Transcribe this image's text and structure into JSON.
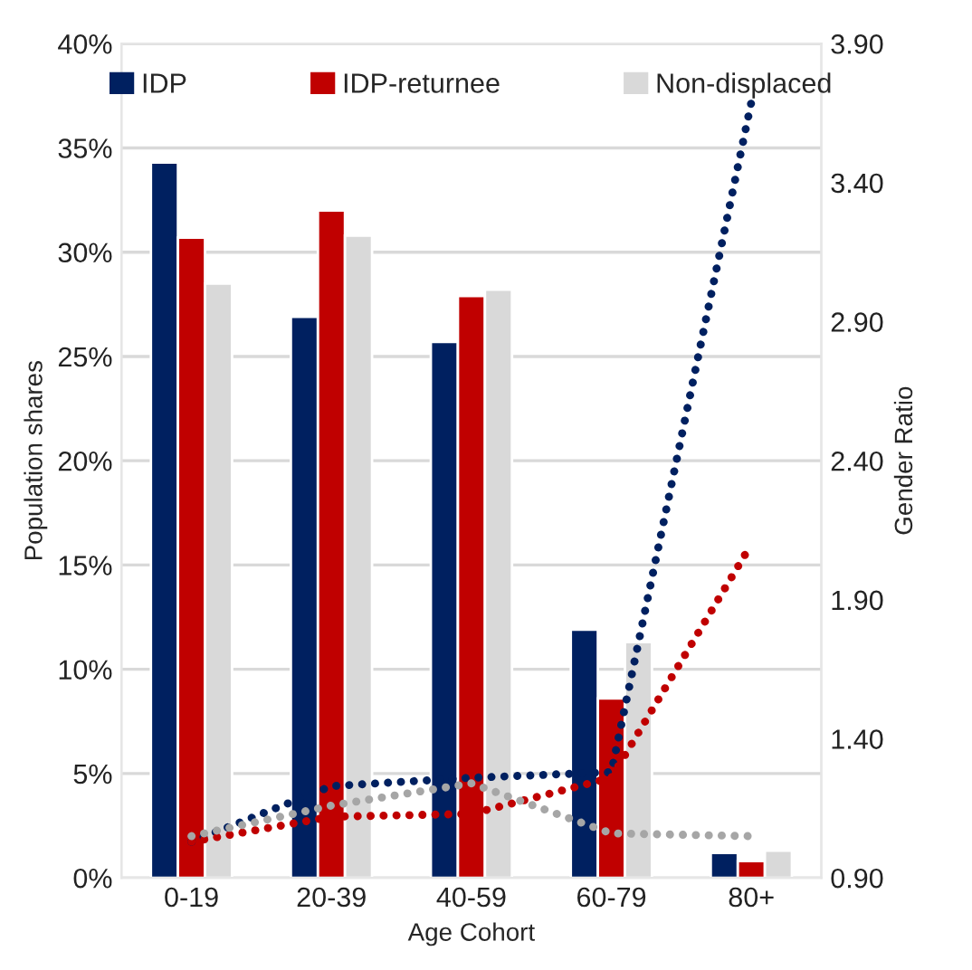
{
  "chart_data": {
    "type": "bar",
    "xlabel": "Age Cohort",
    "ylabel": "Population shares",
    "y2label": "Gender Ratio",
    "categories": [
      "0-19",
      "20-39",
      "40-59",
      "60-79",
      "80+"
    ],
    "series": [
      {
        "name": "IDP",
        "color": "#002060",
        "values": [
          34.3,
          26.9,
          25.7,
          11.9,
          1.2
        ]
      },
      {
        "name": "IDP-returnee",
        "color": "#c00000",
        "values": [
          30.7,
          32.0,
          27.9,
          8.6,
          0.8
        ]
      },
      {
        "name": "Non-displaced",
        "color": "#d9d9d9",
        "values": [
          28.5,
          30.8,
          28.2,
          11.3,
          1.3
        ]
      },
      {
        "type": "line",
        "axis": "y2",
        "color": "#002060",
        "values": [
          1.03,
          1.23,
          1.26,
          1.28,
          3.69
        ]
      },
      {
        "type": "line",
        "axis": "y2",
        "color": "#c00000",
        "values": [
          1.03,
          1.12,
          1.13,
          1.26,
          2.1
        ]
      },
      {
        "type": "line",
        "axis": "y2",
        "color": "#a6a6a6",
        "values": [
          1.05,
          1.16,
          1.24,
          1.06,
          1.05
        ]
      }
    ],
    "ylim": [
      0,
      40
    ],
    "yticks": [
      {
        "value": 0,
        "label": "0%"
      },
      {
        "value": 5,
        "label": "5%"
      },
      {
        "value": 10,
        "label": "10%"
      },
      {
        "value": 15,
        "label": "15%"
      },
      {
        "value": 20,
        "label": "20%"
      },
      {
        "value": 25,
        "label": "25%"
      },
      {
        "value": 30,
        "label": "30%"
      },
      {
        "value": 35,
        "label": "35%"
      },
      {
        "value": 40,
        "label": "40%"
      }
    ],
    "y2lim": [
      0.9,
      3.9
    ],
    "y2ticks": [
      {
        "value": 0.9,
        "label": "0.90"
      },
      {
        "value": 1.4,
        "label": "1.40"
      },
      {
        "value": 1.9,
        "label": "1.90"
      },
      {
        "value": 2.4,
        "label": "2.40"
      },
      {
        "value": 2.9,
        "label": "2.90"
      },
      {
        "value": 3.4,
        "label": "3.40"
      },
      {
        "value": 3.9,
        "label": "3.90"
      }
    ],
    "grid": "y",
    "legend": "top",
    "line_style": "dotted",
    "marker": "none"
  }
}
